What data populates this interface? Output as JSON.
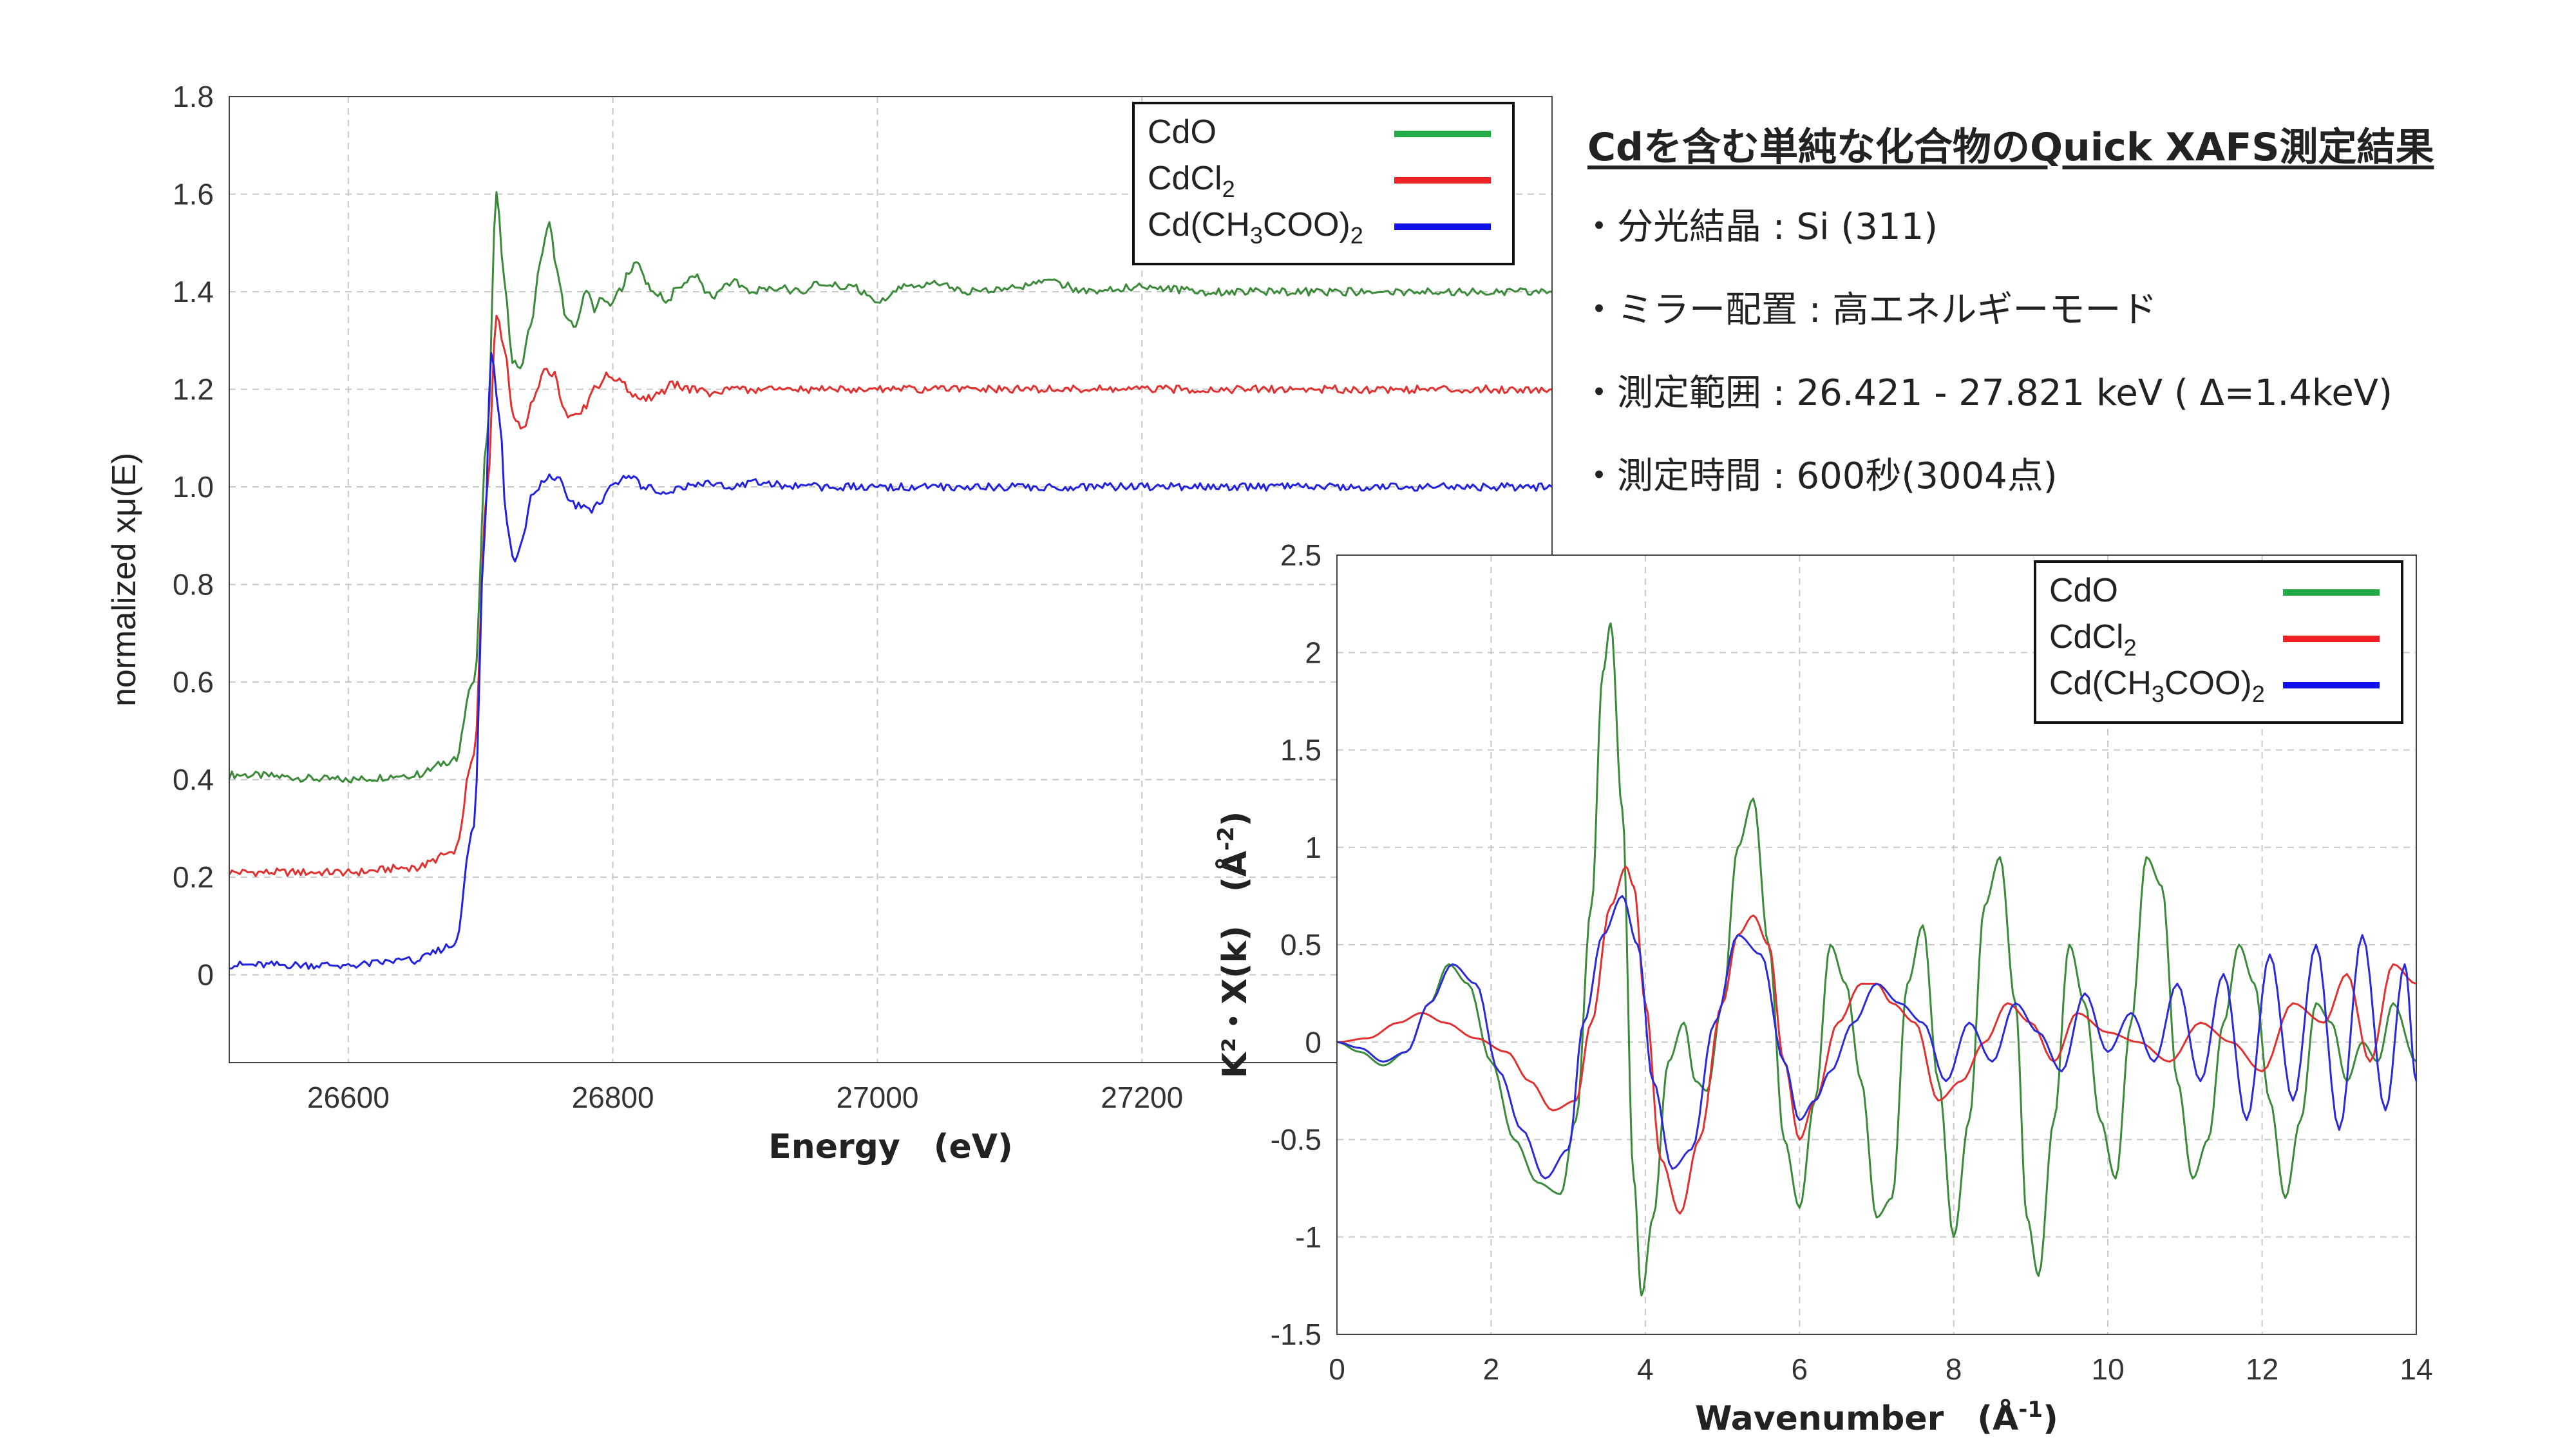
{
  "notes": {
    "title": "Cdを含む単純な化合物のQuick XAFS測定結果",
    "items": [
      "・分光結晶 : Si (311)",
      "・ミラー配置 : 高エネルギーモード",
      "・測定範囲 : 26.421 - 27.821 keV ( Δ=1.4keV)",
      "・測定時間 : 600秒(3004点)"
    ]
  },
  "chart_data": [
    {
      "type": "line",
      "xlabel": "Energy　(eV)",
      "ylabel": "normalized xμ(E)",
      "xlim": [
        26510,
        27510
      ],
      "ylim": [
        -0.18,
        1.8
      ],
      "xticks": [
        26600,
        26800,
        27000,
        27200
      ],
      "yticks": [
        0,
        0.2,
        0.4,
        0.6,
        0.8,
        1.0,
        1.2,
        1.4,
        1.6,
        1.8
      ],
      "ytick_labels": [
        "0",
        "0.2",
        "0.4",
        "0.6",
        "0.8",
        "1.0",
        "1.2",
        "1.4",
        "1.6",
        "1.8"
      ],
      "grid": true,
      "legend_position": "top-right",
      "legend": [
        {
          "name": "CdO",
          "color": "#22aa44"
        },
        {
          "name": "CdCl",
          "sub": "2",
          "color": "#ee2222"
        },
        {
          "name": "Cd(CH",
          "sub": "3",
          "name2": "COO)",
          "sub2": "2",
          "color": "#1111ee"
        }
      ],
      "series": [
        {
          "name": "CdO",
          "color": "#3a8a3a",
          "x": [
            26510,
            26600,
            26650,
            26680,
            26695,
            26705,
            26712,
            26718,
            26724,
            26730,
            26738,
            26745,
            26752,
            26758,
            26765,
            26772,
            26780,
            26786,
            26792,
            26798,
            26805,
            26812,
            26818,
            26825,
            26832,
            26840,
            26850,
            26862,
            26875,
            26890,
            26905,
            26922,
            26940,
            26960,
            26980,
            27000,
            27020,
            27045,
            27070,
            27100,
            27130,
            27160,
            27200,
            27250,
            27300,
            27350,
            27400,
            27450,
            27510
          ],
          "y": [
            0.41,
            0.4,
            0.41,
            0.44,
            0.6,
            1.1,
            1.61,
            1.42,
            1.26,
            1.24,
            1.33,
            1.46,
            1.54,
            1.44,
            1.34,
            1.33,
            1.41,
            1.36,
            1.39,
            1.37,
            1.4,
            1.44,
            1.46,
            1.42,
            1.4,
            1.38,
            1.41,
            1.43,
            1.39,
            1.42,
            1.4,
            1.41,
            1.4,
            1.42,
            1.41,
            1.38,
            1.41,
            1.42,
            1.4,
            1.41,
            1.42,
            1.4,
            1.41,
            1.4,
            1.4,
            1.4,
            1.4,
            1.4,
            1.4
          ]
        },
        {
          "name": "CdCl2",
          "color": "#e03030",
          "x": [
            26510,
            26600,
            26650,
            26680,
            26695,
            26705,
            26712,
            26718,
            26725,
            26732,
            26740,
            26748,
            26756,
            26762,
            26770,
            26778,
            26786,
            26795,
            26805,
            26815,
            26825,
            26835,
            26845,
            26860,
            26875,
            26890,
            26910,
            26930,
            26960,
            27000,
            27050,
            27100,
            27200,
            27300,
            27400,
            27510
          ],
          "y": [
            0.21,
            0.21,
            0.22,
            0.25,
            0.45,
            1.0,
            1.35,
            1.28,
            1.14,
            1.12,
            1.18,
            1.24,
            1.23,
            1.16,
            1.14,
            1.16,
            1.2,
            1.23,
            1.22,
            1.19,
            1.18,
            1.19,
            1.21,
            1.2,
            1.19,
            1.2,
            1.2,
            1.2,
            1.2,
            1.2,
            1.2,
            1.2,
            1.2,
            1.2,
            1.2,
            1.2
          ]
        },
        {
          "name": "Cd(CH3COO)2",
          "color": "#2222dd",
          "x": [
            26510,
            26600,
            26650,
            26680,
            26695,
            26703,
            26708,
            26714,
            26720,
            26726,
            26732,
            26740,
            26750,
            26758,
            26766,
            26774,
            26782,
            26790,
            26800,
            26812,
            26825,
            26840,
            26855,
            26870,
            26890,
            26910,
            26940,
            26980,
            27030,
            27100,
            27200,
            27300,
            27400,
            27510
          ],
          "y": [
            0.02,
            0.02,
            0.03,
            0.06,
            0.3,
            0.9,
            1.27,
            1.15,
            0.92,
            0.84,
            0.9,
            0.99,
            1.02,
            1.02,
            0.98,
            0.96,
            0.95,
            0.97,
            1.0,
            1.02,
            1.0,
            0.99,
            1.0,
            1.01,
            1.0,
            1.01,
            1.0,
            1.0,
            1.0,
            1.0,
            1.0,
            1.0,
            1.0,
            1.0
          ]
        }
      ]
    },
    {
      "type": "line",
      "xlabel": "Wavenumber　(Å",
      "xlabel_sup": "-1",
      "xlabel_end": ")",
      "ylabel": "K²・Χ(k)　(Å",
      "ylabel_sup": "-2",
      "ylabel_end": ")",
      "xlim": [
        0,
        14
      ],
      "ylim": [
        -1.5,
        2.5
      ],
      "xticks": [
        0,
        2,
        4,
        6,
        8,
        10,
        12,
        14
      ],
      "yticks": [
        -1.5,
        -1,
        -0.5,
        0,
        0.5,
        1,
        1.5,
        2,
        2.5
      ],
      "ytick_labels": [
        "-1.5",
        "-1",
        "-0.5",
        "0",
        "0.5",
        "1",
        "1.5",
        "2",
        "2.5"
      ],
      "grid": true,
      "legend_position": "top-right",
      "legend": [
        {
          "name": "CdO",
          "color": "#22aa44"
        },
        {
          "name": "CdCl",
          "sub": "2",
          "color": "#ee2222"
        },
        {
          "name": "Cd(CH",
          "sub": "3",
          "name2": "COO)",
          "sub2": "2",
          "color": "#1111ee"
        }
      ],
      "series": [
        {
          "name": "CdO",
          "color": "#3a8a3a",
          "x": [
            0,
            0.3,
            0.6,
            0.9,
            1.2,
            1.45,
            1.7,
            2.0,
            2.3,
            2.6,
            2.9,
            3.1,
            3.3,
            3.45,
            3.55,
            3.7,
            3.85,
            3.95,
            4.1,
            4.3,
            4.5,
            4.65,
            4.8,
            5.0,
            5.2,
            5.4,
            5.6,
            5.8,
            6.0,
            6.2,
            6.4,
            6.6,
            6.8,
            7.0,
            7.2,
            7.4,
            7.6,
            7.8,
            8.0,
            8.2,
            8.4,
            8.6,
            8.8,
            8.95,
            9.1,
            9.3,
            9.5,
            9.7,
            9.9,
            10.1,
            10.3,
            10.5,
            10.7,
            10.9,
            11.1,
            11.3,
            11.5,
            11.7,
            11.9,
            12.1,
            12.3,
            12.5,
            12.7,
            12.9,
            13.1,
            13.3,
            13.5,
            13.7,
            14.0
          ],
          "y": [
            0,
            -0.05,
            -0.12,
            -0.05,
            0.2,
            0.4,
            0.3,
            -0.1,
            -0.5,
            -0.72,
            -0.78,
            -0.4,
            0.7,
            1.9,
            2.15,
            1.2,
            -0.7,
            -1.3,
            -0.9,
            -0.1,
            0.1,
            -0.2,
            -0.25,
            0.2,
            1.0,
            1.25,
            0.5,
            -0.5,
            -0.85,
            -0.3,
            0.5,
            0.3,
            -0.2,
            -0.9,
            -0.8,
            0.3,
            0.6,
            -0.2,
            -1.0,
            -0.4,
            0.7,
            0.95,
            0.2,
            -0.9,
            -1.2,
            -0.4,
            0.5,
            0.2,
            -0.4,
            -0.7,
            0.1,
            0.95,
            0.8,
            -0.2,
            -0.7,
            -0.5,
            0.1,
            0.5,
            0.3,
            -0.3,
            -0.8,
            -0.4,
            0.2,
            0.1,
            -0.2,
            0.0,
            -0.1,
            0.2,
            -0.1
          ]
        },
        {
          "name": "CdCl2",
          "color": "#e03030",
          "x": [
            0,
            0.4,
            0.8,
            1.1,
            1.4,
            1.8,
            2.2,
            2.5,
            2.8,
            3.1,
            3.3,
            3.55,
            3.75,
            3.85,
            4.0,
            4.2,
            4.45,
            4.7,
            5.0,
            5.2,
            5.4,
            5.6,
            5.8,
            6.0,
            6.2,
            6.5,
            6.8,
            7.0,
            7.2,
            7.5,
            7.8,
            8.1,
            8.4,
            8.7,
            9.0,
            9.3,
            9.6,
            10.0,
            10.4,
            10.8,
            11.2,
            11.6,
            12.0,
            12.4,
            12.8,
            13.1,
            13.4,
            13.7,
            14.0
          ],
          "y": [
            0,
            0.02,
            0.1,
            0.15,
            0.1,
            0.02,
            -0.05,
            -0.2,
            -0.35,
            -0.3,
            0.1,
            0.7,
            0.9,
            0.8,
            0.2,
            -0.6,
            -0.88,
            -0.5,
            0.2,
            0.55,
            0.65,
            0.5,
            -0.1,
            -0.5,
            -0.3,
            0.1,
            0.3,
            0.3,
            0.2,
            0.1,
            -0.3,
            -0.2,
            0.0,
            0.2,
            0.1,
            -0.1,
            0.15,
            0.05,
            0.0,
            -0.1,
            0.1,
            0.0,
            -0.15,
            0.2,
            0.1,
            0.35,
            -0.1,
            0.4,
            0.3
          ]
        },
        {
          "name": "Cd(CH3COO)2",
          "color": "#2a2ad8",
          "x": [
            0,
            0.3,
            0.6,
            0.9,
            1.2,
            1.5,
            1.8,
            2.1,
            2.4,
            2.7,
            3.0,
            3.2,
            3.45,
            3.7,
            3.9,
            4.1,
            4.35,
            4.6,
            4.9,
            5.2,
            5.5,
            5.8,
            6.0,
            6.2,
            6.4,
            6.7,
            7.0,
            7.3,
            7.6,
            7.9,
            8.2,
            8.5,
            8.8,
            9.1,
            9.4,
            9.7,
            10.0,
            10.3,
            10.6,
            10.9,
            11.2,
            11.5,
            11.8,
            12.1,
            12.4,
            12.7,
            13.0,
            13.3,
            13.6,
            13.85,
            14.0
          ],
          "y": [
            0,
            -0.03,
            -0.1,
            -0.05,
            0.2,
            0.4,
            0.3,
            -0.15,
            -0.45,
            -0.7,
            -0.55,
            0.1,
            0.55,
            0.75,
            0.5,
            -0.2,
            -0.65,
            -0.55,
            0.1,
            0.55,
            0.45,
            -0.1,
            -0.4,
            -0.3,
            -0.15,
            0.1,
            0.3,
            0.2,
            0.1,
            -0.2,
            0.1,
            -0.1,
            0.2,
            0.05,
            -0.15,
            0.25,
            -0.05,
            0.15,
            -0.1,
            0.3,
            -0.2,
            0.35,
            -0.4,
            0.45,
            -0.3,
            0.5,
            -0.45,
            0.55,
            -0.35,
            0.4,
            -0.2
          ]
        }
      ]
    }
  ]
}
